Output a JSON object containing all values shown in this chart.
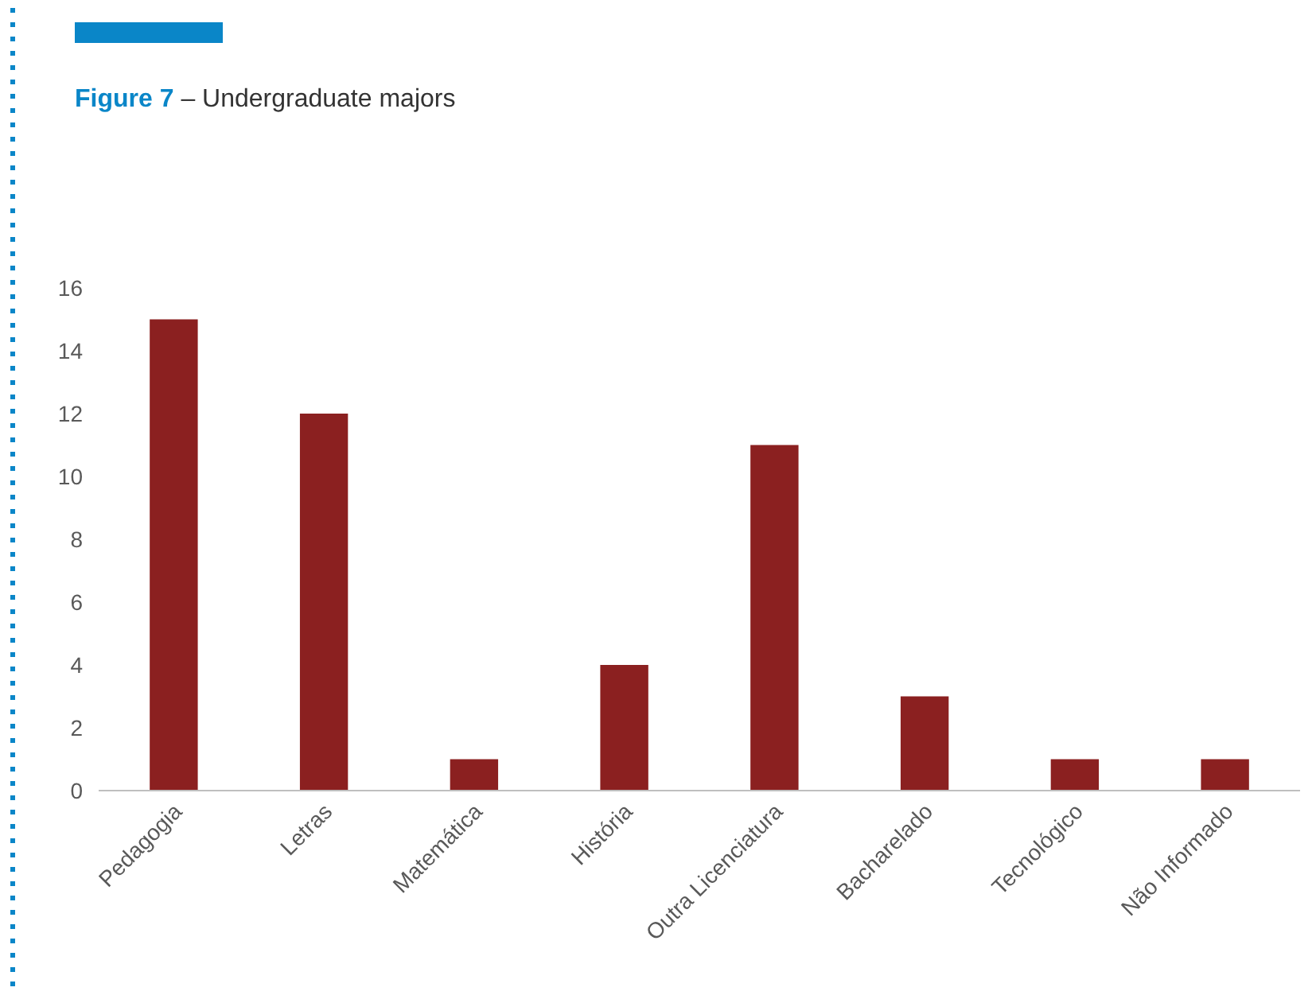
{
  "chart_data": {
    "type": "bar",
    "title": "Figure 7 – Undergraduate majors",
    "categories": [
      "Pedagogia",
      "Letras",
      "Matemática",
      "História",
      "Outra Licenciatura",
      "Bacharelado",
      "Tecnológico",
      "Não Informado"
    ],
    "values": [
      15,
      12,
      1,
      4,
      11,
      3,
      1,
      1
    ],
    "color": "#8b2020",
    "ylim": [
      0,
      16
    ],
    "yticks": [
      0,
      2,
      4,
      6,
      8,
      10,
      12,
      14,
      16
    ]
  }
}
